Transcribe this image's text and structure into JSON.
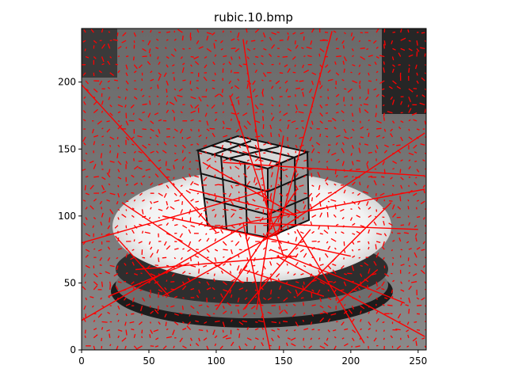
{
  "chart_data": {
    "type": "image",
    "title": "rubic.10.bmp",
    "xlabel": "",
    "ylabel": "",
    "xlim": [
      0,
      256
    ],
    "ylim": [
      0,
      240
    ],
    "x_ticks": [
      0,
      50,
      100,
      150,
      200,
      250
    ],
    "y_ticks": [
      0,
      50,
      100,
      150,
      200
    ],
    "image_description": "grayscale photo of a Rubik's cube on a white turntable with dark background shapes",
    "overlay": {
      "type": "quiver",
      "color": "#ff0000",
      "grid_spacing": 6,
      "typical_vector_length": 3,
      "long_vectors": [
        {
          "x": 0,
          "y": 198,
          "u": 100,
          "v": -110
        },
        {
          "x": 186,
          "y": 238,
          "u": -40,
          "v": -150
        },
        {
          "x": 255,
          "y": 162,
          "u": -120,
          "v": -80
        },
        {
          "x": 120,
          "y": 232,
          "u": 20,
          "v": -140
        },
        {
          "x": 30,
          "y": 110,
          "u": 90,
          "v": -60
        },
        {
          "x": 255,
          "y": 130,
          "u": -150,
          "v": 10
        },
        {
          "x": 255,
          "y": 120,
          "u": -160,
          "v": -30
        },
        {
          "x": 0,
          "y": 80,
          "u": 140,
          "v": 40
        },
        {
          "x": 0,
          "y": 22,
          "u": 120,
          "v": 70
        },
        {
          "x": 255,
          "y": 10,
          "u": -110,
          "v": 60
        },
        {
          "x": 240,
          "y": 35,
          "u": -100,
          "v": 40
        },
        {
          "x": 200,
          "y": 70,
          "u": -140,
          "v": 30
        },
        {
          "x": 90,
          "y": 140,
          "u": 70,
          "v": -40
        },
        {
          "x": 80,
          "y": 120,
          "u": 80,
          "v": -20
        },
        {
          "x": 250,
          "y": 90,
          "u": -130,
          "v": 5
        },
        {
          "x": 25,
          "y": 85,
          "u": 40,
          "v": -45
        },
        {
          "x": 140,
          "y": 0,
          "u": -20,
          "v": 95
        },
        {
          "x": 210,
          "y": 5,
          "u": -50,
          "v": 85
        },
        {
          "x": 60,
          "y": 40,
          "u": 90,
          "v": 50
        },
        {
          "x": 230,
          "y": 110,
          "u": -70,
          "v": -70
        },
        {
          "x": 160,
          "y": 120,
          "u": -60,
          "v": -90
        },
        {
          "x": 150,
          "y": 160,
          "u": -20,
          "v": -130
        },
        {
          "x": 110,
          "y": 190,
          "u": 40,
          "v": -120
        },
        {
          "x": 40,
          "y": 60,
          "u": 120,
          "v": 10
        },
        {
          "x": 20,
          "y": 40,
          "u": 60,
          "v": 25
        },
        {
          "x": 180,
          "y": 40,
          "u": -60,
          "v": 20
        },
        {
          "x": 220,
          "y": 60,
          "u": -30,
          "v": -25
        },
        {
          "x": 120,
          "y": 30,
          "u": 50,
          "v": 60
        }
      ]
    }
  }
}
